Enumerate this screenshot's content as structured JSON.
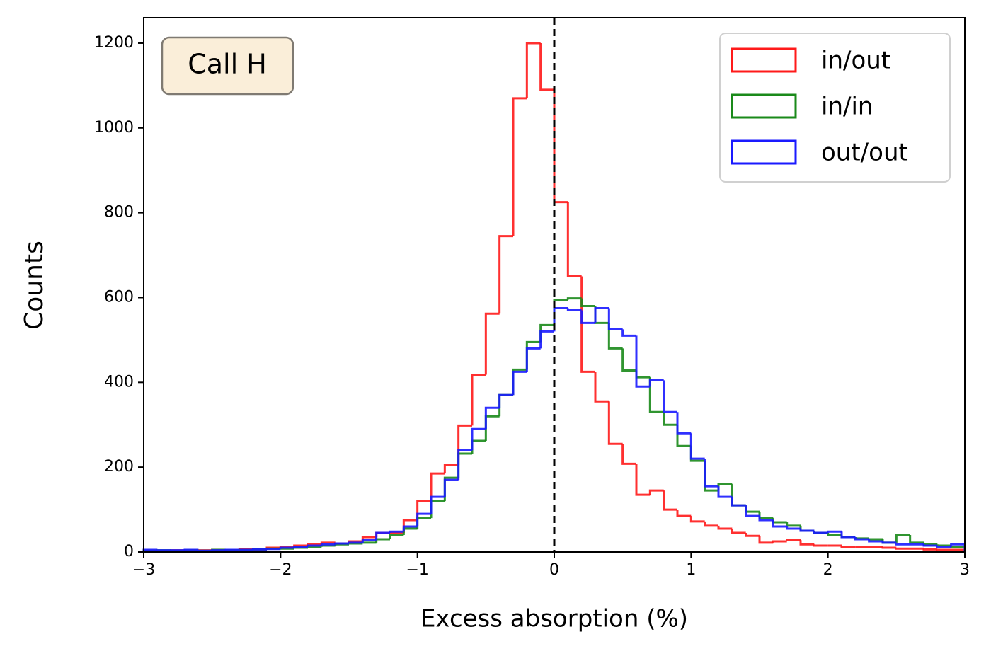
{
  "chart_data": {
    "type": "histogram",
    "xlabel": "Excess absorption (%)",
    "ylabel": "Counts",
    "annotation": "Call H",
    "reference_line": 0,
    "bins": [
      -3,
      -2.9,
      -2.8,
      -2.7,
      -2.6,
      -2.5,
      -2.4,
      -2.3,
      -2.2,
      -2.1,
      -2,
      -1.9,
      -1.8,
      -1.7,
      -1.6,
      -1.5,
      -1.4,
      -1.3,
      -1.2,
      -1.1,
      -1,
      -0.9,
      -0.8,
      -0.7,
      -0.6,
      -0.5,
      -0.4,
      -0.3,
      -0.2,
      -0.1,
      0,
      0.1,
      0.2,
      0.3,
      0.4,
      0.5,
      0.6,
      0.7,
      0.8,
      0.9,
      1,
      1.1,
      1.2,
      1.3,
      1.4,
      1.5,
      1.6,
      1.7,
      1.8,
      1.9,
      2,
      2.1,
      2.2,
      2.3,
      2.4,
      2.5,
      2.6,
      2.7,
      2.8,
      2.9,
      3
    ],
    "series": [
      {
        "name": "in/out",
        "color": "#ff1a1a",
        "values": [
          3,
          3,
          4,
          3,
          4,
          5,
          4,
          6,
          5,
          10,
          12,
          15,
          18,
          22,
          20,
          25,
          35,
          45,
          45,
          75,
          120,
          185,
          205,
          298,
          418,
          562,
          745,
          1070,
          1200,
          1090,
          825,
          650,
          425,
          355,
          255,
          208,
          135,
          145,
          100,
          85,
          72,
          62,
          55,
          45,
          38,
          22,
          25,
          28,
          18,
          15,
          15,
          12,
          12,
          12,
          10,
          8,
          8,
          6,
          5,
          5
        ]
      },
      {
        "name": "in/in",
        "color": "#1a8a1a",
        "values": [
          3,
          4,
          3,
          4,
          3,
          5,
          4,
          5,
          6,
          8,
          8,
          10,
          12,
          15,
          18,
          20,
          22,
          30,
          40,
          55,
          80,
          120,
          175,
          232,
          262,
          320,
          370,
          430,
          495,
          535,
          595,
          598,
          580,
          540,
          480,
          428,
          412,
          330,
          300,
          250,
          215,
          145,
          160,
          110,
          95,
          80,
          70,
          62,
          50,
          45,
          40,
          35,
          32,
          30,
          22,
          40,
          22,
          18,
          15,
          12
        ]
      },
      {
        "name": "out/out",
        "color": "#1a1aff",
        "values": [
          5,
          4,
          4,
          5,
          3,
          4,
          5,
          5,
          6,
          7,
          10,
          12,
          15,
          18,
          20,
          22,
          28,
          45,
          48,
          60,
          90,
          130,
          170,
          240,
          290,
          340,
          370,
          425,
          480,
          520,
          575,
          570,
          540,
          575,
          525,
          510,
          390,
          405,
          330,
          280,
          220,
          155,
          130,
          110,
          85,
          75,
          60,
          55,
          50,
          45,
          48,
          35,
          30,
          25,
          22,
          18,
          18,
          15,
          12,
          18
        ]
      }
    ],
    "xlim": [
      -3,
      3
    ],
    "ylim": [
      0,
      1260
    ],
    "xticks": [
      {
        "value": -3,
        "label": "−3"
      },
      {
        "value": -2,
        "label": "−2"
      },
      {
        "value": -1,
        "label": "−1"
      },
      0,
      1,
      2,
      3
    ],
    "yticks": [
      0,
      200,
      400,
      600,
      800,
      1000,
      1200
    ],
    "legend": "upper right"
  }
}
